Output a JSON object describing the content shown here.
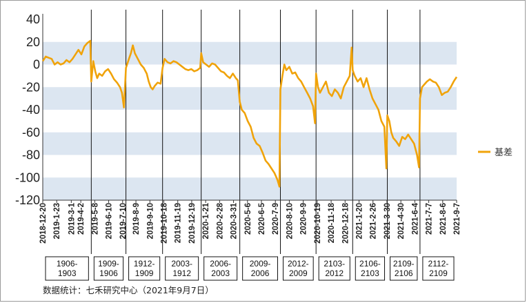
{
  "chart_data": {
    "type": "line",
    "ylim": [
      -120,
      40
    ],
    "yticks": [
      40,
      20,
      0,
      -20,
      -40,
      -60,
      -80,
      -100,
      -120
    ],
    "banded_background": true,
    "band_color": "#dce6f1",
    "line_color": "#f0a30a",
    "legend_position": "right",
    "series": [
      {
        "name": "基差",
        "points": [
          [
            0,
            3
          ],
          [
            3,
            7
          ],
          [
            6,
            6
          ],
          [
            9,
            5
          ],
          [
            12,
            0
          ],
          [
            15,
            2
          ],
          [
            18,
            0
          ],
          [
            21,
            1
          ],
          [
            24,
            4
          ],
          [
            27,
            2
          ],
          [
            30,
            5
          ],
          [
            33,
            9
          ],
          [
            36,
            13
          ],
          [
            39,
            9
          ],
          [
            42,
            16
          ],
          [
            45,
            19
          ],
          [
            48,
            21
          ],
          [
            49,
            -15
          ],
          [
            51,
            3
          ],
          [
            53,
            -6
          ],
          [
            55,
            -12
          ],
          [
            57,
            -8
          ],
          [
            60,
            -10
          ],
          [
            63,
            -6
          ],
          [
            66,
            -4
          ],
          [
            69,
            -8
          ],
          [
            72,
            -13
          ],
          [
            75,
            -16
          ],
          [
            78,
            -20
          ],
          [
            80,
            -25
          ],
          [
            82,
            -38
          ],
          [
            84,
            -3
          ],
          [
            87,
            5
          ],
          [
            89,
            10
          ],
          [
            91,
            17
          ],
          [
            93,
            10
          ],
          [
            96,
            5
          ],
          [
            99,
            0
          ],
          [
            102,
            -3
          ],
          [
            105,
            -8
          ],
          [
            107,
            -15
          ],
          [
            109,
            -20
          ],
          [
            111,
            -22
          ],
          [
            113,
            -19
          ],
          [
            116,
            -16
          ],
          [
            119,
            -17
          ],
          [
            121,
            -3
          ],
          [
            123,
            5
          ],
          [
            126,
            2
          ],
          [
            129,
            1
          ],
          [
            132,
            3
          ],
          [
            135,
            2
          ],
          [
            138,
            0
          ],
          [
            141,
            -2
          ],
          [
            144,
            -4
          ],
          [
            147,
            -5
          ],
          [
            150,
            -4
          ],
          [
            153,
            -6
          ],
          [
            156,
            -5
          ],
          [
            159,
            -3
          ],
          [
            160,
            10
          ],
          [
            162,
            2
          ],
          [
            165,
            0
          ],
          [
            168,
            -2
          ],
          [
            171,
            1
          ],
          [
            174,
            0
          ],
          [
            177,
            -3
          ],
          [
            180,
            -6
          ],
          [
            183,
            -7
          ],
          [
            186,
            -10
          ],
          [
            189,
            -12
          ],
          [
            192,
            -8
          ],
          [
            195,
            -12
          ],
          [
            197,
            -14
          ],
          [
            199,
            -33
          ],
          [
            201,
            -40
          ],
          [
            204,
            -43
          ],
          [
            207,
            -50
          ],
          [
            210,
            -55
          ],
          [
            213,
            -65
          ],
          [
            216,
            -70
          ],
          [
            219,
            -72
          ],
          [
            222,
            -78
          ],
          [
            225,
            -85
          ],
          [
            228,
            -88
          ],
          [
            231,
            -92
          ],
          [
            234,
            -96
          ],
          [
            237,
            -102
          ],
          [
            239,
            -108
          ],
          [
            240,
            -22
          ],
          [
            242,
            -10
          ],
          [
            244,
            0
          ],
          [
            246,
            -5
          ],
          [
            249,
            -2
          ],
          [
            252,
            -8
          ],
          [
            255,
            -7
          ],
          [
            258,
            -12
          ],
          [
            261,
            -15
          ],
          [
            264,
            -20
          ],
          [
            267,
            -25
          ],
          [
            270,
            -30
          ],
          [
            273,
            -37
          ],
          [
            275,
            -52
          ],
          [
            276,
            -8
          ],
          [
            278,
            -20
          ],
          [
            280,
            -25
          ],
          [
            283,
            -20
          ],
          [
            286,
            -15
          ],
          [
            289,
            -25
          ],
          [
            292,
            -28
          ],
          [
            295,
            -22
          ],
          [
            298,
            -25
          ],
          [
            301,
            -30
          ],
          [
            304,
            -20
          ],
          [
            307,
            -15
          ],
          [
            310,
            -10
          ],
          [
            312,
            15
          ],
          [
            313,
            -5
          ],
          [
            315,
            -10
          ],
          [
            318,
            -15
          ],
          [
            321,
            -12
          ],
          [
            324,
            -20
          ],
          [
            327,
            -12
          ],
          [
            330,
            -22
          ],
          [
            333,
            -30
          ],
          [
            336,
            -35
          ],
          [
            339,
            -40
          ],
          [
            342,
            -50
          ],
          [
            345,
            -55
          ],
          [
            347,
            -92
          ],
          [
            348,
            -45
          ],
          [
            350,
            -50
          ],
          [
            352,
            -60
          ],
          [
            354,
            -65
          ],
          [
            357,
            -68
          ],
          [
            360,
            -72
          ],
          [
            363,
            -64
          ],
          [
            366,
            -66
          ],
          [
            369,
            -62
          ],
          [
            372,
            -66
          ],
          [
            375,
            -70
          ],
          [
            378,
            -80
          ],
          [
            380,
            -91
          ],
          [
            381,
            -30
          ],
          [
            383,
            -20
          ],
          [
            385,
            -18
          ],
          [
            388,
            -15
          ],
          [
            391,
            -13
          ],
          [
            394,
            -15
          ],
          [
            397,
            -16
          ],
          [
            400,
            -20
          ],
          [
            403,
            -27
          ],
          [
            406,
            -25
          ],
          [
            409,
            -24
          ],
          [
            412,
            -20
          ],
          [
            415,
            -15
          ],
          [
            418,
            -11
          ]
        ]
      }
    ],
    "date_ticks": [
      {
        "label": "2018-12-20",
        "x": 0
      },
      {
        "label": "2019-1-23",
        "x": 22
      },
      {
        "label": "2019-3-1",
        "x": 45
      },
      {
        "label": "2019-4-2",
        "x": 60
      },
      {
        "label": "2019-5-8",
        "x": 82
      },
      {
        "label": "2019-6-10",
        "x": 104
      },
      {
        "label": "2019-7-10",
        "x": 126
      },
      {
        "label": "2019-8-9",
        "x": 147
      },
      {
        "label": "2019-9-10",
        "x": 169
      },
      {
        "label": "2019-10-18",
        "x": 191
      },
      {
        "label": "2019-11-19",
        "x": 213
      },
      {
        "label": "2019-12-19",
        "x": 235
      },
      {
        "label": "2020-1-21",
        "x": 257
      },
      {
        "label": "2020-2-28",
        "x": 279
      },
      {
        "label": "2020-3-31",
        "x": 301
      },
      {
        "label": "2020-5-6",
        "x": 323
      },
      {
        "label": "2020-6-5",
        "x": 345
      },
      {
        "label": "2020-7-9",
        "x": 367
      },
      {
        "label": "2020-8-10",
        "x": 389
      },
      {
        "label": "2020-9-9",
        "x": 411
      },
      {
        "label": "2020-10-19",
        "x": 433
      },
      {
        "label": "2020-11-18",
        "x": 455
      },
      {
        "label": "2020-12-18",
        "x": 477
      },
      {
        "label": "2021-1-20",
        "x": 499
      },
      {
        "label": "2021-2-26",
        "x": 521
      },
      {
        "label": "2021-3-30",
        "x": 543
      },
      {
        "label": "2021-4-30",
        "x": 565
      },
      {
        "label": "2021-6-4",
        "x": 587
      },
      {
        "label": "2021-7-7",
        "x": 609
      },
      {
        "label": "2021-8-6",
        "x": 631
      },
      {
        "label": "2021-9-7",
        "x": 653
      }
    ],
    "contracts": [
      {
        "label": "1906-\n1903",
        "start": 0,
        "end": 49
      },
      {
        "label": "1909-\n1906",
        "start": 49,
        "end": 84
      },
      {
        "label": "1912-\n1909",
        "start": 84,
        "end": 121
      },
      {
        "label": "2003-\n1912",
        "start": 121,
        "end": 160
      },
      {
        "label": "2006-\n2003",
        "start": 160,
        "end": 199
      },
      {
        "label": "2009-\n2006",
        "start": 199,
        "end": 240
      },
      {
        "label": "2012-\n2009",
        "start": 240,
        "end": 276
      },
      {
        "label": "2103-\n2012",
        "start": 276,
        "end": 313
      },
      {
        "label": "2106-\n2103",
        "start": 313,
        "end": 348
      },
      {
        "label": "2109-\n2106",
        "start": 348,
        "end": 381
      },
      {
        "label": "2112-\n2109",
        "start": 381,
        "end": 418
      }
    ]
  },
  "legend": {
    "label": "基差"
  },
  "source_note": "数据统计：七禾研究中心（2021年9月7日）"
}
